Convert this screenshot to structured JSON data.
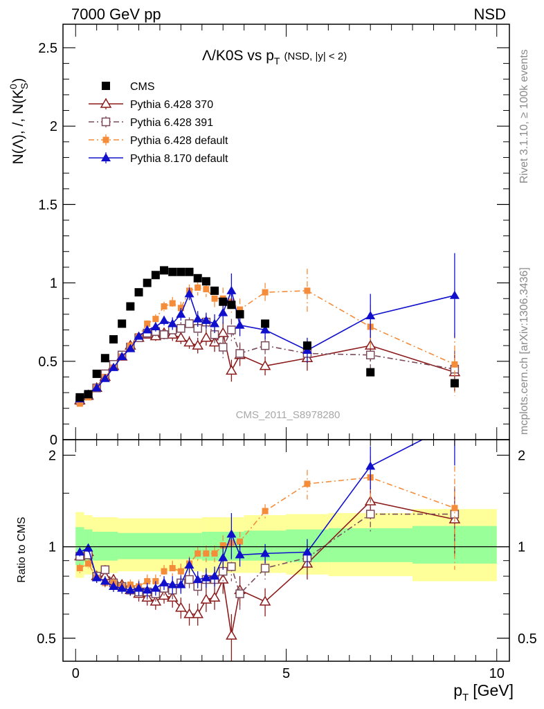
{
  "header": {
    "energy_label": "7000 GeV pp",
    "process_label": "NSD"
  },
  "side_labels": {
    "rivet": "Rivet 3.1.10, ≥ 100k events",
    "source": "mcplots.cern.ch [arXiv:1306.3436]"
  },
  "chart_data": [
    {
      "type": "line",
      "panel": "main",
      "title": "Λ/K0S vs p",
      "title_sub": "T",
      "title_extra": "(NSD, |y| < 2)",
      "ylabel_parts": {
        "a": "N(Λ), /, N(K",
        "sup": "0",
        "sub": "S",
        "b": ")"
      },
      "watermark": "CMS_2011_S8978280",
      "xlim": [
        -0.3,
        10.3
      ],
      "ylim": [
        0,
        2.65
      ],
      "yticks": [
        0,
        0.5,
        1,
        1.5,
        2,
        2.5
      ],
      "ytick_labels": [
        "0",
        "0.5",
        "1",
        "1.5",
        "2",
        "2.5"
      ],
      "legend_position": "top-left",
      "series": [
        {
          "name": "CMS",
          "color": "#000000",
          "marker": "square-filled",
          "line": "none",
          "x": [
            0.1,
            0.3,
            0.5,
            0.7,
            0.9,
            1.1,
            1.3,
            1.5,
            1.7,
            1.9,
            2.1,
            2.3,
            2.5,
            2.7,
            2.9,
            3.1,
            3.3,
            3.5,
            3.7,
            3.9,
            4.5,
            5.5,
            7.0,
            9.0
          ],
          "y": [
            0.27,
            0.29,
            0.42,
            0.52,
            0.64,
            0.74,
            0.85,
            0.94,
            1.0,
            1.05,
            1.08,
            1.07,
            1.07,
            1.07,
            1.03,
            1.01,
            0.95,
            0.88,
            0.86,
            0.8,
            0.74,
            0.6,
            0.43,
            0.36
          ],
          "err": [
            0.01,
            0.01,
            0.01,
            0.01,
            0.01,
            0.01,
            0.01,
            0.01,
            0.01,
            0.01,
            0.01,
            0.01,
            0.01,
            0.01,
            0.02,
            0.02,
            0.02,
            0.02,
            0.02,
            0.02,
            0.02,
            0.02,
            0.02,
            0.02
          ]
        },
        {
          "name": "Pythia 6.428 370",
          "color": "#8b1a1a",
          "marker": "triangle-open",
          "line": "solid",
          "x": [
            0.1,
            0.3,
            0.5,
            0.7,
            0.9,
            1.1,
            1.3,
            1.5,
            1.7,
            1.9,
            2.1,
            2.3,
            2.5,
            2.7,
            2.9,
            3.1,
            3.3,
            3.5,
            3.7,
            3.9,
            4.5,
            5.5,
            7.0,
            9.0
          ],
          "y": [
            0.25,
            0.28,
            0.33,
            0.4,
            0.47,
            0.53,
            0.6,
            0.65,
            0.67,
            0.66,
            0.68,
            0.67,
            0.65,
            0.62,
            0.6,
            0.65,
            0.62,
            0.68,
            0.44,
            0.54,
            0.47,
            0.52,
            0.6,
            0.43
          ],
          "err": [
            0.01,
            0.01,
            0.01,
            0.01,
            0.01,
            0.01,
            0.02,
            0.02,
            0.02,
            0.03,
            0.03,
            0.04,
            0.04,
            0.04,
            0.05,
            0.05,
            0.06,
            0.07,
            0.07,
            0.07,
            0.06,
            0.08,
            0.1,
            0.12
          ]
        },
        {
          "name": "Pythia 6.428 391",
          "color": "#7a4a5a",
          "marker": "square-open",
          "line": "dashdot",
          "x": [
            0.1,
            0.3,
            0.5,
            0.7,
            0.9,
            1.1,
            1.3,
            1.5,
            1.7,
            1.9,
            2.1,
            2.3,
            2.5,
            2.7,
            2.9,
            3.1,
            3.3,
            3.5,
            3.7,
            3.9,
            4.5,
            5.5,
            7.0,
            9.0
          ],
          "y": [
            0.25,
            0.28,
            0.33,
            0.42,
            0.48,
            0.54,
            0.59,
            0.65,
            0.68,
            0.69,
            0.67,
            0.7,
            0.71,
            0.74,
            0.71,
            0.75,
            0.67,
            0.59,
            0.7,
            0.55,
            0.6,
            0.55,
            0.54,
            0.45
          ],
          "err": [
            0.01,
            0.01,
            0.01,
            0.01,
            0.01,
            0.01,
            0.02,
            0.02,
            0.02,
            0.03,
            0.03,
            0.04,
            0.04,
            0.04,
            0.05,
            0.05,
            0.06,
            0.07,
            0.07,
            0.07,
            0.06,
            0.08,
            0.1,
            0.12
          ]
        },
        {
          "name": "Pythia 6.428 default",
          "color": "#f48c3a",
          "marker": "square-filled-small",
          "line": "dashdot",
          "x": [
            0.1,
            0.3,
            0.5,
            0.7,
            0.9,
            1.1,
            1.3,
            1.5,
            1.7,
            1.9,
            2.1,
            2.3,
            2.5,
            2.7,
            2.9,
            3.1,
            3.3,
            3.5,
            3.7,
            3.9,
            4.5,
            5.5,
            7.0,
            9.0
          ],
          "y": [
            0.23,
            0.27,
            0.33,
            0.4,
            0.46,
            0.53,
            0.6,
            0.66,
            0.74,
            0.77,
            0.85,
            0.87,
            0.84,
            0.95,
            0.97,
            0.96,
            0.9,
            0.9,
            0.88,
            0.83,
            0.94,
            0.95,
            0.72,
            0.48
          ],
          "err": [
            0.01,
            0.01,
            0.01,
            0.01,
            0.01,
            0.01,
            0.02,
            0.02,
            0.02,
            0.03,
            0.03,
            0.04,
            0.04,
            0.04,
            0.05,
            0.05,
            0.06,
            0.07,
            0.07,
            0.07,
            0.06,
            0.14,
            0.14,
            0.2
          ]
        },
        {
          "name": "Pythia 8.170 default",
          "color": "#1010cc",
          "marker": "triangle-filled",
          "line": "solid",
          "x": [
            0.1,
            0.3,
            0.5,
            0.7,
            0.9,
            1.1,
            1.3,
            1.5,
            1.7,
            1.9,
            2.1,
            2.3,
            2.5,
            2.7,
            2.9,
            3.1,
            3.3,
            3.5,
            3.7,
            3.9,
            4.5,
            5.5,
            7.0,
            9.0
          ],
          "y": [
            0.26,
            0.29,
            0.33,
            0.39,
            0.46,
            0.53,
            0.58,
            0.66,
            0.7,
            0.72,
            0.76,
            0.74,
            0.8,
            0.93,
            0.77,
            0.76,
            0.74,
            0.81,
            0.95,
            0.73,
            0.7,
            0.57,
            0.79,
            0.92
          ],
          "err": [
            0.01,
            0.01,
            0.01,
            0.01,
            0.01,
            0.01,
            0.02,
            0.02,
            0.02,
            0.03,
            0.03,
            0.04,
            0.04,
            0.04,
            0.05,
            0.05,
            0.06,
            0.07,
            0.11,
            0.07,
            0.06,
            0.08,
            0.14,
            0.27
          ]
        }
      ]
    },
    {
      "type": "line",
      "panel": "ratio",
      "ylabel": "Ratio to CMS",
      "xlabel": "p",
      "xlabel_sub": "T",
      "xlabel_unit": "[GeV]",
      "xlim": [
        -0.3,
        10.3
      ],
      "ylim": [
        0.42,
        2.25
      ],
      "xticks": [
        0,
        5,
        10
      ],
      "xtick_labels": [
        "0",
        "5",
        "10"
      ],
      "yticks": [
        0.5,
        1,
        2
      ],
      "ytick_labels": [
        "0.5",
        "1",
        "2"
      ],
      "reference_line": 1,
      "bands": [
        {
          "name": "yellow",
          "color": "#ffff99",
          "bins": [
            [
              0,
              0.2,
              0.79,
              1.3
            ],
            [
              0.2,
              0.4,
              0.81,
              1.27
            ],
            [
              0.4,
              1.0,
              0.82,
              1.25
            ],
            [
              1.0,
              3.0,
              0.83,
              1.24
            ],
            [
              3.0,
              4.0,
              0.82,
              1.25
            ],
            [
              4.0,
              5.0,
              0.82,
              1.27
            ],
            [
              5.0,
              6.0,
              0.81,
              1.28
            ],
            [
              6.0,
              8.0,
              0.8,
              1.29
            ],
            [
              8.0,
              10.0,
              0.77,
              1.33
            ]
          ]
        },
        {
          "name": "green",
          "color": "#99ff99",
          "bins": [
            [
              0,
              0.2,
              0.87,
              1.16
            ],
            [
              0.2,
              0.4,
              0.89,
              1.14
            ],
            [
              0.4,
              1.0,
              0.9,
              1.12
            ],
            [
              1.0,
              3.0,
              0.91,
              1.11
            ],
            [
              3.0,
              4.0,
              0.9,
              1.12
            ],
            [
              4.0,
              5.0,
              0.9,
              1.13
            ],
            [
              5.0,
              6.0,
              0.89,
              1.14
            ],
            [
              6.0,
              8.0,
              0.89,
              1.15
            ],
            [
              8.0,
              10.0,
              0.88,
              1.17
            ]
          ]
        }
      ],
      "series": [
        {
          "name": "Pythia 6.428 370",
          "x": [
            0.1,
            0.3,
            0.5,
            0.7,
            0.9,
            1.1,
            1.3,
            1.5,
            1.7,
            1.9,
            2.1,
            2.3,
            2.5,
            2.7,
            2.9,
            3.1,
            3.3,
            3.5,
            3.7,
            3.9,
            4.5,
            5.5,
            7.0,
            9.0
          ],
          "y": [
            0.93,
            0.96,
            0.8,
            0.8,
            0.78,
            0.75,
            0.72,
            0.7,
            0.68,
            0.66,
            0.69,
            0.68,
            0.63,
            0.6,
            0.6,
            0.67,
            0.68,
            0.78,
            0.51,
            0.72,
            0.66,
            0.88,
            1.41,
            1.23
          ],
          "err": [
            0.03,
            0.03,
            0.03,
            0.03,
            0.03,
            0.03,
            0.03,
            0.04,
            0.04,
            0.04,
            0.04,
            0.05,
            0.05,
            0.05,
            0.05,
            0.06,
            0.06,
            0.08,
            0.09,
            0.08,
            0.07,
            0.1,
            0.18,
            0.3
          ]
        },
        {
          "name": "Pythia 6.428 391",
          "x": [
            0.1,
            0.3,
            0.5,
            0.7,
            0.9,
            1.1,
            1.3,
            1.5,
            1.7,
            1.9,
            2.1,
            2.3,
            2.5,
            2.7,
            2.9,
            3.1,
            3.3,
            3.5,
            3.7,
            3.9,
            4.5,
            5.5,
            7.0,
            9.0
          ],
          "y": [
            0.93,
            0.94,
            0.8,
            0.84,
            0.76,
            0.74,
            0.72,
            0.71,
            0.71,
            0.7,
            0.73,
            0.72,
            0.76,
            0.78,
            0.74,
            0.78,
            0.78,
            0.83,
            0.86,
            0.7,
            0.85,
            0.92,
            1.28,
            1.28
          ],
          "err": [
            0.03,
            0.03,
            0.03,
            0.03,
            0.03,
            0.03,
            0.03,
            0.04,
            0.04,
            0.04,
            0.04,
            0.05,
            0.05,
            0.05,
            0.05,
            0.06,
            0.06,
            0.08,
            0.09,
            0.08,
            0.07,
            0.1,
            0.18,
            0.3
          ]
        },
        {
          "name": "Pythia 6.428 default",
          "x": [
            0.1,
            0.3,
            0.5,
            0.7,
            0.9,
            1.1,
            1.3,
            1.5,
            1.7,
            1.9,
            2.1,
            2.3,
            2.5,
            2.7,
            2.9,
            3.1,
            3.3,
            3.5,
            3.7,
            3.9,
            4.5,
            5.5,
            7.0,
            9.0
          ],
          "y": [
            0.85,
            0.88,
            0.79,
            0.76,
            0.76,
            0.74,
            0.75,
            0.74,
            0.77,
            0.77,
            0.83,
            0.85,
            0.83,
            0.88,
            0.95,
            0.95,
            0.95,
            1.01,
            1.03,
            1.04,
            1.31,
            1.61,
            1.69,
            1.34
          ],
          "err": [
            0.03,
            0.03,
            0.03,
            0.03,
            0.03,
            0.03,
            0.03,
            0.04,
            0.04,
            0.04,
            0.04,
            0.05,
            0.05,
            0.05,
            0.05,
            0.06,
            0.06,
            0.08,
            0.09,
            0.08,
            0.07,
            0.18,
            0.3,
            0.5
          ]
        },
        {
          "name": "Pythia 8.170 default",
          "x": [
            0.1,
            0.3,
            0.5,
            0.7,
            0.9,
            1.1,
            1.3,
            1.5,
            1.7,
            1.9,
            2.1,
            2.3,
            2.5,
            2.7,
            2.9,
            3.1,
            3.3,
            3.5,
            3.7,
            3.9,
            4.5,
            5.5,
            7.0,
            9.0
          ],
          "y": [
            0.96,
            0.99,
            0.79,
            0.77,
            0.74,
            0.73,
            0.72,
            0.73,
            0.72,
            0.73,
            0.76,
            0.75,
            0.75,
            0.87,
            0.78,
            0.79,
            0.8,
            0.92,
            1.1,
            0.94,
            0.95,
            0.96,
            1.84,
            2.55
          ],
          "err": [
            0.03,
            0.03,
            0.03,
            0.03,
            0.03,
            0.03,
            0.03,
            0.04,
            0.04,
            0.04,
            0.04,
            0.05,
            0.05,
            0.05,
            0.05,
            0.06,
            0.06,
            0.08,
            0.19,
            0.08,
            0.07,
            0.1,
            0.3,
            0.7
          ]
        }
      ]
    }
  ]
}
